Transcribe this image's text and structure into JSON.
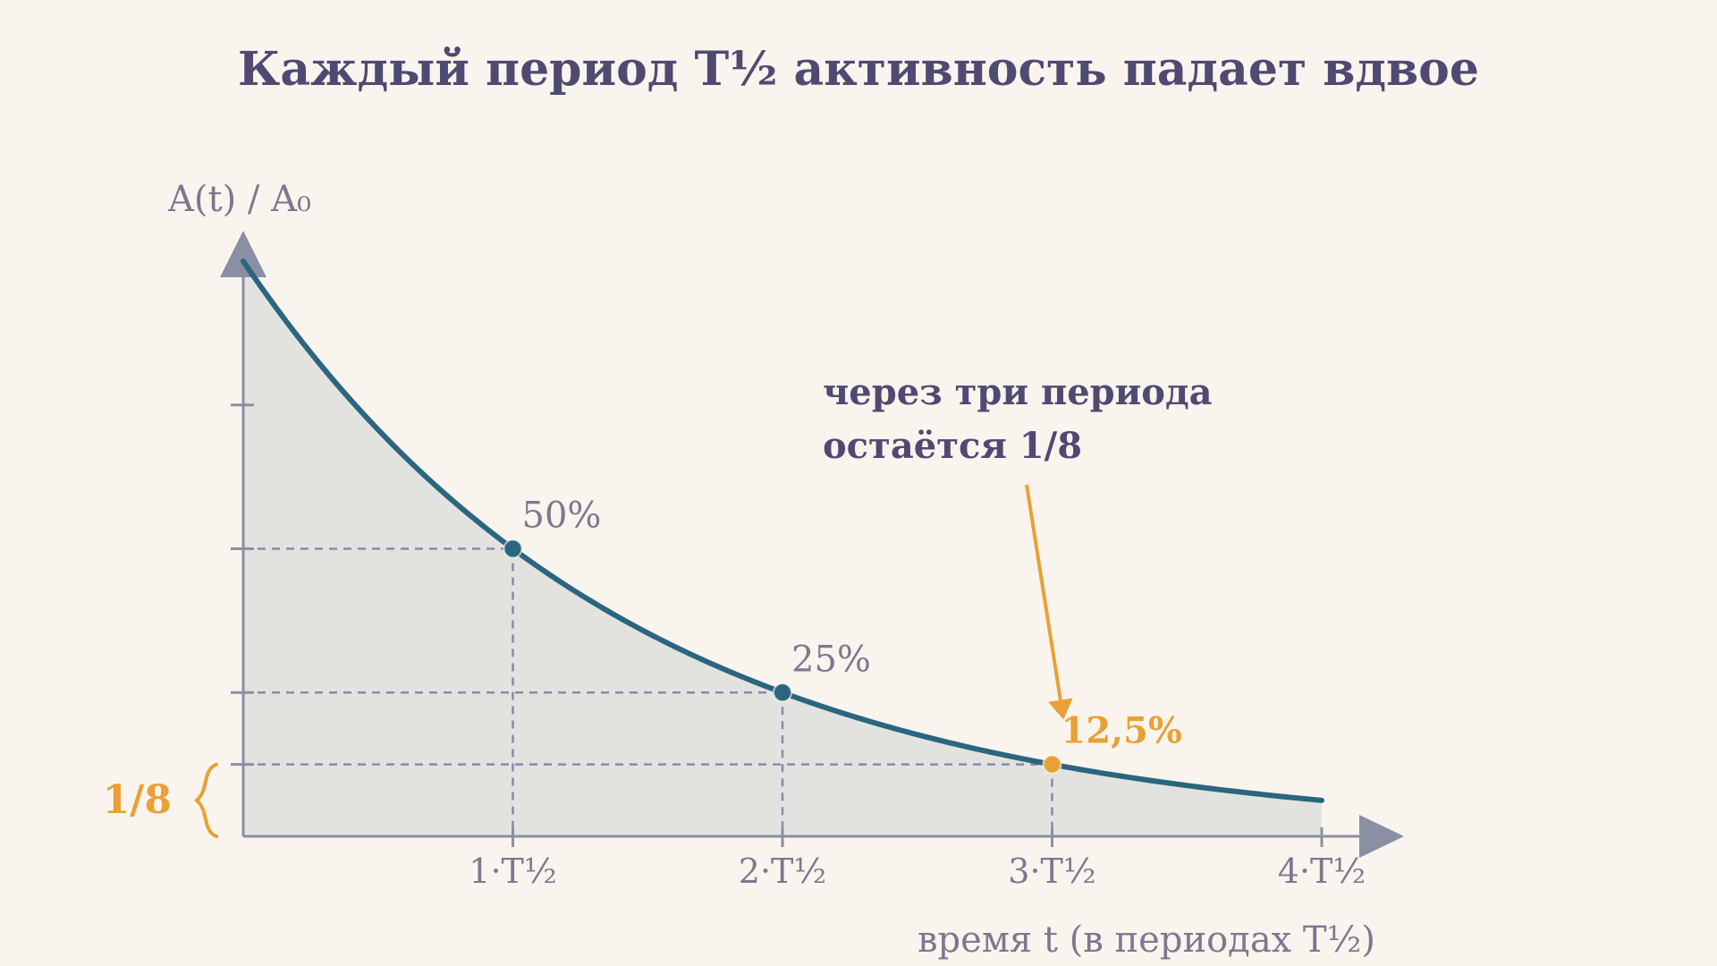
{
  "chart_data": {
    "type": "area",
    "title": "Каждый период T½ активность падает вдвое",
    "ylabel": "A(t) / A₀",
    "xlabel": "время t (в периодах T½)",
    "xlim": [
      0,
      4
    ],
    "ylim": [
      0,
      1
    ],
    "x_ticks": [
      {
        "value": 1,
        "label": "1·T½"
      },
      {
        "value": 2,
        "label": "2·T½"
      },
      {
        "value": 3,
        "label": "3·T½"
      },
      {
        "value": 4,
        "label": "4·T½"
      }
    ],
    "y_ticks": [
      0.125,
      0.25,
      0.5,
      0.75
    ],
    "curve": {
      "type": "exponential_decay",
      "start": 1,
      "half_life": 1
    },
    "points": [
      {
        "x": 1,
        "y": 0.5,
        "label": "50%"
      },
      {
        "x": 2,
        "y": 0.25,
        "label": "25%"
      },
      {
        "x": 3,
        "y": 0.125,
        "label": "12,5%",
        "highlight": true
      }
    ],
    "annotation": {
      "lines": [
        "через три периода",
        "остаётся 1/8"
      ],
      "target_x": 3
    },
    "brace_label": "1/8",
    "colors": {
      "curve": "#2b6680",
      "fill": "#e2e3df",
      "axis": "#8a8fa3",
      "guide": "#8f86ad",
      "accent": "#e9a035",
      "title": "#4f4a72",
      "muted": "#7d7890"
    }
  }
}
